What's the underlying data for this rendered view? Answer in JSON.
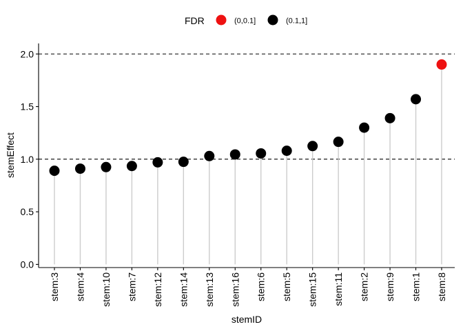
{
  "chart_data": {
    "type": "scatter",
    "subtype": "lollipop",
    "xlabel": "stemID",
    "ylabel": "stemEffect",
    "ylim": [
      -0.03,
      2.1
    ],
    "yticks": [
      "0.0",
      "0.5",
      "1.0",
      "1.5",
      "2.0"
    ],
    "yticks_values": [
      0,
      0.5,
      1.0,
      1.5,
      2.0
    ],
    "reference_lines": [
      1.0,
      2.0
    ],
    "grid": false,
    "legend": {
      "title": "FDR",
      "position": "top",
      "entries": [
        {
          "label": "(0,0.1]",
          "color": "#ee1111"
        },
        {
          "label": "(0.1,1]",
          "color": "#000000"
        }
      ]
    },
    "categories": [
      "stem:3",
      "stem:4",
      "stem:10",
      "stem:7",
      "stem:12",
      "stem:14",
      "stem:13",
      "stem:16",
      "stem:6",
      "stem:5",
      "stem:15",
      "stem:11",
      "stem:2",
      "stem:9",
      "stem:1",
      "stem:8"
    ],
    "values": [
      0.89,
      0.91,
      0.925,
      0.935,
      0.97,
      0.975,
      1.03,
      1.045,
      1.055,
      1.08,
      1.125,
      1.165,
      1.3,
      1.39,
      1.57,
      1.9
    ],
    "groups": [
      "(0.1,1]",
      "(0.1,1]",
      "(0.1,1]",
      "(0.1,1]",
      "(0.1,1]",
      "(0.1,1]",
      "(0.1,1]",
      "(0.1,1]",
      "(0.1,1]",
      "(0.1,1]",
      "(0.1,1]",
      "(0.1,1]",
      "(0.1,1]",
      "(0.1,1]",
      "(0.1,1]",
      "(0,0.1]"
    ],
    "colors": {
      "point_default": "#000000",
      "point_highlight": "#ee1111",
      "stem_line": "#cccccc",
      "axis": "#000000"
    }
  }
}
